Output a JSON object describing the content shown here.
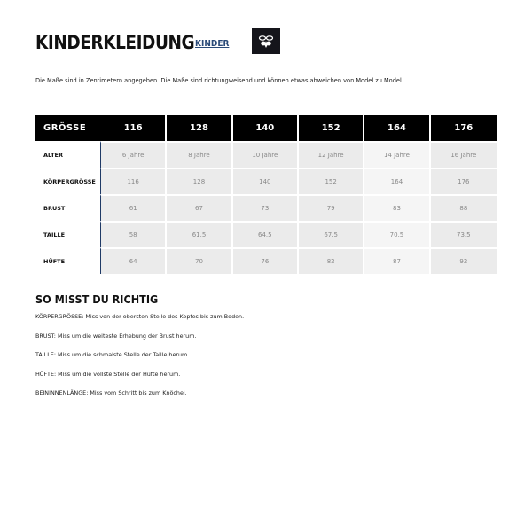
{
  "header": {
    "title": "KINDERKLEIDUNG",
    "category_link": "KINDER",
    "logo_icon": "hummel-bee-logo",
    "logo_bg": "#15151b"
  },
  "intro": "Die Maße sind in Zentimetern angegeben. Die Maße sind richtungweisend und können etwas abweichen von Model zu Model.",
  "table": {
    "corner": "GRÖSSE",
    "sizes": [
      "116",
      "128",
      "140",
      "152",
      "164",
      "176"
    ],
    "rows": [
      {
        "label": "ALTER",
        "values": [
          "6 Jahre",
          "8 Jahre",
          "10 Jahre",
          "12 Jahre",
          "14 Jahre",
          "16 Jahre"
        ]
      },
      {
        "label": "KÖRPERGRÖSSE",
        "values": [
          "116",
          "128",
          "140",
          "152",
          "164",
          "176"
        ]
      },
      {
        "label": "BRUST",
        "values": [
          "61",
          "67",
          "73",
          "79",
          "83",
          "88"
        ]
      },
      {
        "label": "TAILLE",
        "values": [
          "58",
          "61.5",
          "64.5",
          "67.5",
          "70.5",
          "73.5"
        ]
      },
      {
        "label": "HÜFTE",
        "values": [
          "64",
          "70",
          "76",
          "82",
          "87",
          "92"
        ]
      }
    ],
    "header_bg": "#000000",
    "cell_bg": "#ebebeb",
    "highlight_cell_bg": "#f5f5f5",
    "accent_line": "#1f3a66"
  },
  "guide": {
    "title": "SO MISST DU RICHTIG",
    "items": [
      "KÖRPERGRÖSSE: Miss von der obersten Stelle des Kopfes bis zum Boden.",
      "BRUST: Miss um die weiteste Erhebung der Brust herum.",
      "TAILLE: Miss um die schmalste Stelle der Taille herum.",
      "HÜFTE: Miss um die vollste Stelle der Hüfte herum.",
      "BEININNENLÄNGE: Miss vom Schritt bis zum Knöchel."
    ]
  }
}
